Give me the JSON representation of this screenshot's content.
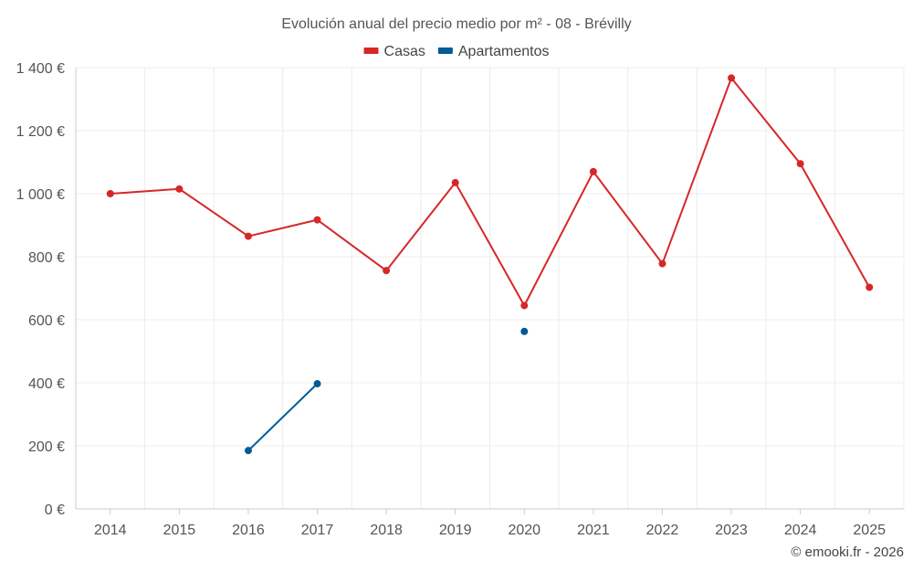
{
  "chart_data": {
    "type": "line",
    "title": "Evolución anual del precio medio por m² - 08 - Brévilly",
    "xlabel": "",
    "ylabel": "",
    "categories": [
      "2014",
      "2015",
      "2016",
      "2017",
      "2018",
      "2019",
      "2020",
      "2021",
      "2022",
      "2023",
      "2024",
      "2025"
    ],
    "ylim": [
      0,
      1400
    ],
    "yticks": [
      0,
      200,
      400,
      600,
      800,
      1000,
      1200,
      1400
    ],
    "ytick_labels": [
      "0 €",
      "200 €",
      "400 €",
      "600 €",
      "800 €",
      "1 000 €",
      "1 200 €",
      "1 400 €"
    ],
    "grid": true,
    "legend_position": "top-center",
    "series": [
      {
        "name": "Casas",
        "color": "#d62728",
        "values": [
          1000,
          1015,
          865,
          917,
          756,
          1035,
          645,
          1070,
          778,
          1367,
          1095,
          703
        ]
      },
      {
        "name": "Apartamentos",
        "color": "#005b96",
        "values": [
          null,
          null,
          185,
          397,
          null,
          null,
          563,
          null,
          null,
          null,
          null,
          null
        ]
      }
    ],
    "credit": "© emooki.fr - 2026"
  }
}
